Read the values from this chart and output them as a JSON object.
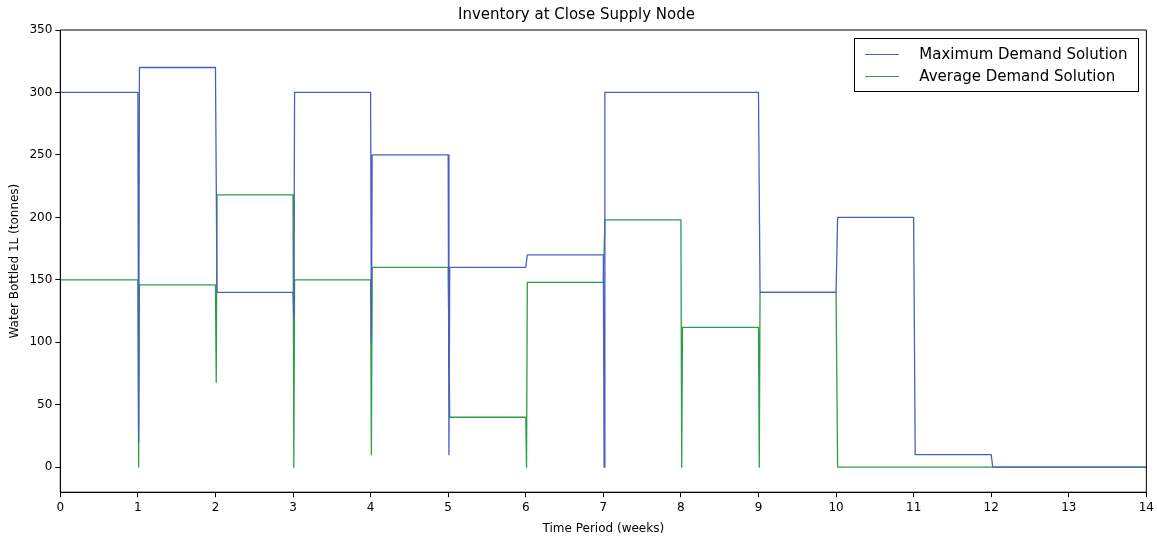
{
  "chart_data": {
    "type": "line",
    "title": "Inventory at Close Supply Node",
    "xlabel": "Time Period (weeks)",
    "ylabel": "Water Bottled 1L (tonnes)",
    "xlim": [
      0,
      14
    ],
    "xticks": [
      0,
      1,
      2,
      3,
      4,
      5,
      6,
      7,
      8,
      9,
      10,
      11,
      12,
      13,
      14
    ],
    "ylim": [
      -20,
      350
    ],
    "yticks": [
      0,
      50,
      100,
      150,
      200,
      250,
      300,
      350
    ],
    "grid": false,
    "legend": "top right",
    "marker": "none",
    "line_style": "solid",
    "series": [
      {
        "name": "Maximum Demand Solution",
        "color": "#4a5fc1",
        "x": [
          0,
          1,
          1.01,
          1.02,
          2,
          2.02,
          3,
          3.01,
          3.02,
          4,
          4.01,
          4.02,
          5,
          5.01,
          5.02,
          6,
          6.02,
          7,
          7.01,
          7.02,
          9,
          9.02,
          10,
          10.02,
          11,
          11.02,
          12,
          12.02,
          14
        ],
        "values": [
          300,
          300,
          20,
          320,
          320,
          140,
          140,
          120,
          300,
          300,
          100,
          250,
          250,
          10,
          160,
          160,
          170,
          170,
          0,
          300,
          300,
          140,
          140,
          200,
          200,
          10,
          10,
          0,
          0
        ]
      },
      {
        "name": "Average Demand Solution",
        "color": "#2e9e44",
        "x": [
          0,
          1,
          1.01,
          1.02,
          2,
          2.01,
          2.02,
          3,
          3.01,
          3.02,
          4,
          4.01,
          4.02,
          5,
          5.02,
          6,
          6.01,
          6.02,
          7,
          7.02,
          8,
          8.01,
          8.02,
          9,
          9.01,
          9.02,
          10,
          10.02,
          14
        ],
        "values": [
          150,
          150,
          0,
          146,
          146,
          68,
          218,
          218,
          0,
          150,
          150,
          10,
          160,
          160,
          40,
          40,
          0,
          148,
          148,
          198,
          198,
          0,
          112,
          112,
          0,
          140,
          140,
          0,
          0
        ]
      }
    ]
  }
}
